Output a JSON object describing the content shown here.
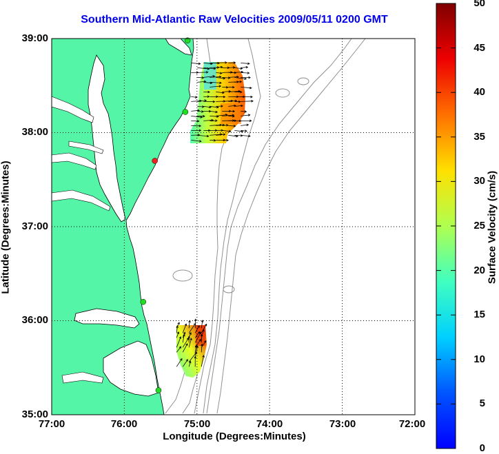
{
  "title": "Southern Mid-Atlantic Raw Velocities 2009/05/11 0200 GMT",
  "x_axis": {
    "label": "Longitude (Degrees:Minutes)",
    "ticks": [
      "77:00",
      "76:00",
      "75:00",
      "74:00",
      "73:00",
      "72:00"
    ]
  },
  "y_axis": {
    "label": "Latitude (Degrees:Minutes)",
    "ticks": [
      "39:00",
      "38:00",
      "37:00",
      "36:00",
      "35:00"
    ]
  },
  "colorbar": {
    "label": "Surface Velocity (cm/s)",
    "ticks": [
      "50",
      "45",
      "40",
      "35",
      "30",
      "25",
      "20",
      "15",
      "10",
      "5",
      "0"
    ],
    "range": [
      0,
      50
    ],
    "colormap": "jet"
  },
  "colors": {
    "land": "#55f5a7",
    "coast": "#000000",
    "bathymetry": "#909090",
    "title": "#0000ee",
    "station_on": "#22dd22",
    "station_alert": "#ee2222"
  },
  "map": {
    "lon_range": [
      -77,
      -72
    ],
    "lat_range": [
      35,
      39
    ],
    "grid": true
  },
  "stations": [
    {
      "lon": -75.13,
      "lat": 38.98,
      "status": "on"
    },
    {
      "lon": -75.16,
      "lat": 38.22,
      "status": "on"
    },
    {
      "lon": -75.58,
      "lat": 37.7,
      "status": "alert"
    },
    {
      "lon": -75.74,
      "lat": 36.2,
      "status": "on"
    },
    {
      "lon": -75.53,
      "lat": 35.26,
      "status": "on"
    }
  ],
  "velocity_fields": [
    {
      "region": "north",
      "lon_range": [
        -75.1,
        -74.3
      ],
      "lat_range": [
        37.88,
        38.77
      ],
      "speed_range": [
        12,
        38
      ]
    },
    {
      "region": "south",
      "lon_range": [
        -75.3,
        -74.88
      ],
      "lat_range": [
        35.45,
        35.95
      ],
      "speed_range": [
        15,
        45
      ]
    }
  ]
}
